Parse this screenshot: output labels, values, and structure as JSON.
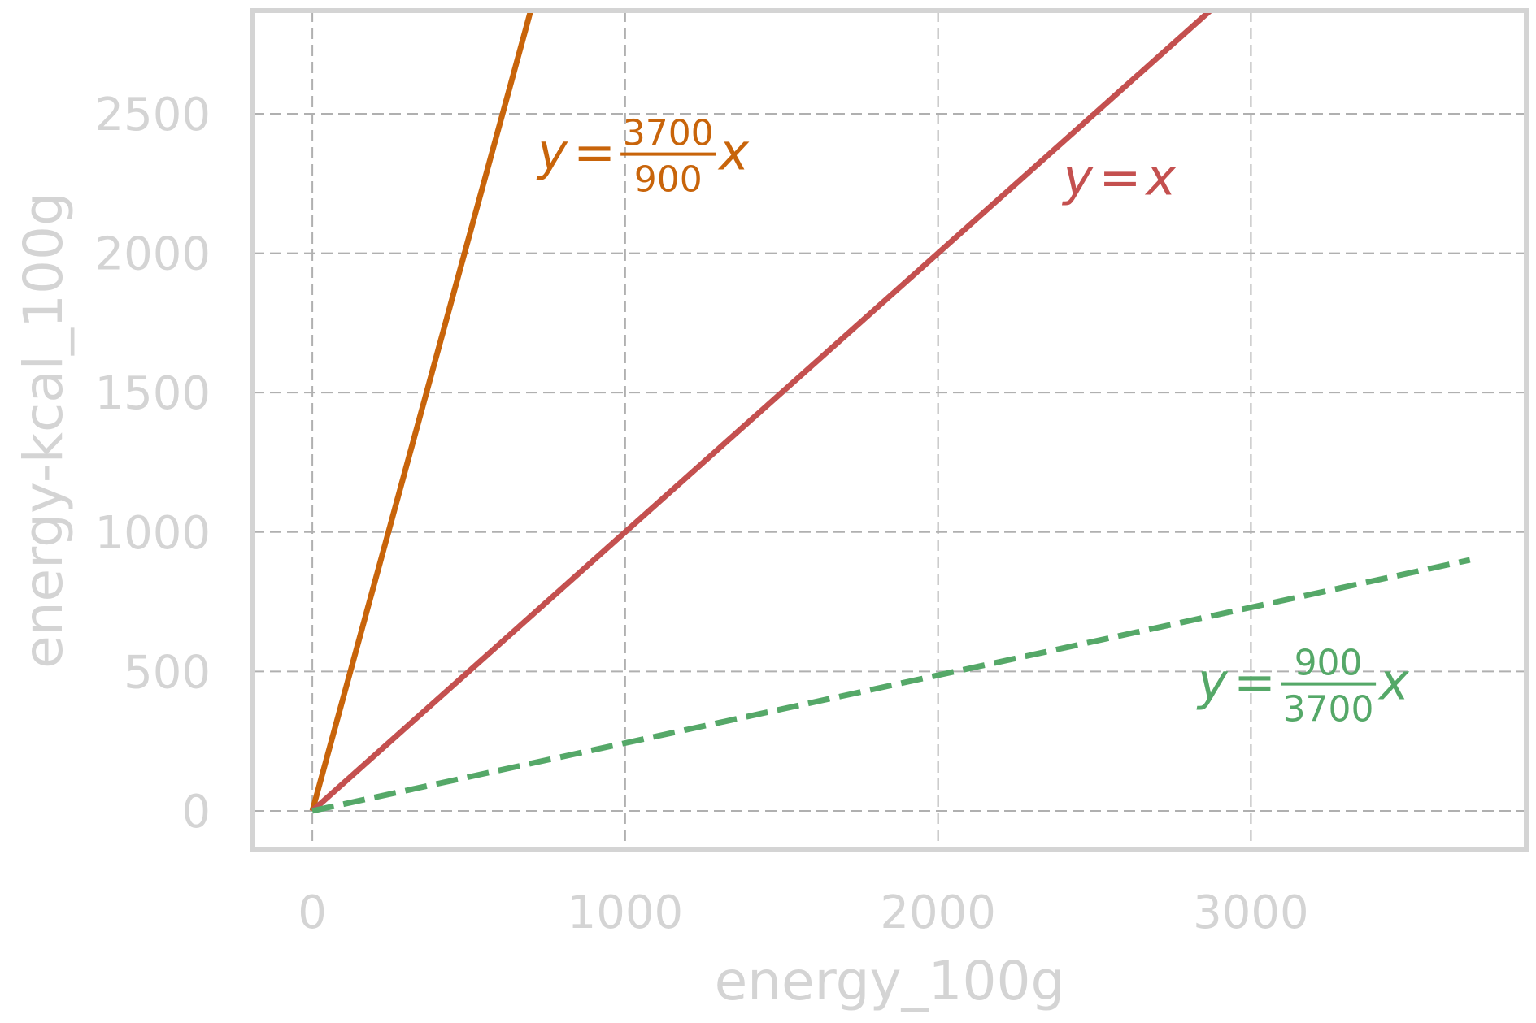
{
  "chart_data": {
    "type": "line",
    "xlabel": "energy_100g",
    "ylabel": "energy-kcal_100g",
    "xlim": [
      -190,
      3880
    ],
    "ylim": [
      -140,
      2870
    ],
    "x_ticks": [
      0,
      1000,
      2000,
      3000
    ],
    "y_ticks": [
      0,
      500,
      1000,
      1500,
      2000,
      2500
    ],
    "x_tick_labels": [
      "0",
      "1000",
      "2000",
      "3000"
    ],
    "y_tick_labels": [
      "0",
      "500",
      "1000",
      "1500",
      "2000",
      "2500"
    ],
    "grid": true,
    "series": [
      {
        "key": "steep",
        "slope": 4.111111,
        "x": [
          0,
          698.1
        ],
        "y": [
          0,
          2870
        ],
        "color": "#c8640a",
        "style": "solid"
      },
      {
        "key": "identity",
        "slope": 1.0,
        "x": [
          0,
          2870
        ],
        "y": [
          0,
          2870
        ],
        "color": "#c4504f",
        "style": "solid"
      },
      {
        "key": "shallow",
        "slope": 0.243243,
        "x": [
          0,
          3700
        ],
        "y": [
          0,
          900
        ],
        "color": "#55a868",
        "style": "dashed"
      }
    ],
    "annotations": [
      {
        "key": "steep",
        "lhs": "y",
        "eq": "=",
        "numerator": "3700",
        "denominator": "900",
        "rhs": "x",
        "color": "#c8640a",
        "at": [
          720,
          2300
        ]
      },
      {
        "key": "identity",
        "lhs": "y",
        "eq": "=",
        "rhs": "x",
        "color": "#c4504f",
        "at": [
          2400,
          2210
        ]
      },
      {
        "key": "shallow",
        "lhs": "y",
        "eq": "=",
        "numerator": "900",
        "denominator": "3700",
        "rhs": "x",
        "color": "#55a868",
        "at": [
          2830,
          400
        ]
      }
    ]
  }
}
